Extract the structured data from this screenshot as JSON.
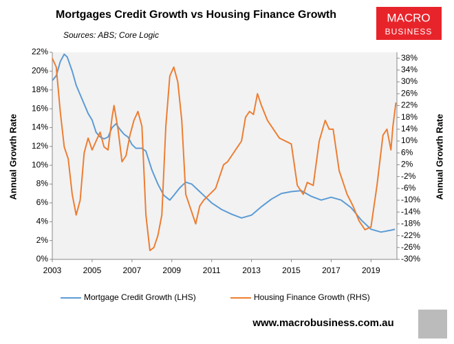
{
  "logo": [
    "MACRO",
    "BUSINESS"
  ],
  "footer": "www.macrobusiness.com.au",
  "chart_data": {
    "type": "line",
    "title": "Mortgages Credit Growth vs Housing Finance Growth",
    "subtitle": "Sources: ABS; Core Logic",
    "y_label": "Annual Growth Rate",
    "y2_label": "Annual Growth Rate",
    "xlim": [
      2003,
      2020.3
    ],
    "xticks": [
      2003,
      2005,
      2007,
      2009,
      2011,
      2013,
      2015,
      2017,
      2019
    ],
    "ylim": [
      0,
      22
    ],
    "yticks": [
      {
        "value": 0,
        "label": "0%"
      },
      {
        "value": 2,
        "label": "2%"
      },
      {
        "value": 4,
        "label": "4%"
      },
      {
        "value": 6,
        "label": "6%"
      },
      {
        "value": 8,
        "label": "8%"
      },
      {
        "value": 10,
        "label": "10%"
      },
      {
        "value": 12,
        "label": "12%"
      },
      {
        "value": 14,
        "label": "14%"
      },
      {
        "value": 16,
        "label": "16%"
      },
      {
        "value": 18,
        "label": "18%"
      },
      {
        "value": 20,
        "label": "20%"
      },
      {
        "value": 22,
        "label": "22%"
      }
    ],
    "y2lim": [
      -30,
      40
    ],
    "y2ticks": [
      {
        "value": -30,
        "label": "-30%"
      },
      {
        "value": -26,
        "label": "-26%"
      },
      {
        "value": -22,
        "label": "-22%"
      },
      {
        "value": -18,
        "label": "-18%"
      },
      {
        "value": -14,
        "label": "-14%"
      },
      {
        "value": -10,
        "label": "-10%"
      },
      {
        "value": -6,
        "label": "-6%"
      },
      {
        "value": -2,
        "label": "-2%"
      },
      {
        "value": 2,
        "label": "2%"
      },
      {
        "value": 6,
        "label": "6%"
      },
      {
        "value": 10,
        "label": "10%"
      },
      {
        "value": 14,
        "label": "14%"
      },
      {
        "value": 18,
        "label": "18%"
      },
      {
        "value": 22,
        "label": "22%"
      },
      {
        "value": 26,
        "label": "26%"
      },
      {
        "value": 30,
        "label": "30%"
      },
      {
        "value": 34,
        "label": "34%"
      },
      {
        "value": 38,
        "label": "38%"
      }
    ],
    "grid": false,
    "series": [
      {
        "name": "Mortgage Credit Growth (LHS)",
        "color": "#5b9bd5",
        "axis": "y",
        "x": [
          2003.0,
          2003.2,
          2003.4,
          2003.6,
          2003.75,
          2004.0,
          2004.2,
          2004.5,
          2004.8,
          2005.0,
          2005.2,
          2005.4,
          2005.6,
          2005.8,
          2006.0,
          2006.2,
          2006.4,
          2006.6,
          2006.8,
          2007.0,
          2007.2,
          2007.5,
          2007.7,
          2008.0,
          2008.3,
          2008.6,
          2008.9,
          2009.1,
          2009.4,
          2009.7,
          2010.0,
          2010.3,
          2010.6,
          2011.0,
          2011.5,
          2012.0,
          2012.5,
          2013.0,
          2013.5,
          2014.0,
          2014.5,
          2015.0,
          2015.5,
          2016.0,
          2016.5,
          2017.0,
          2017.5,
          2018.0,
          2018.5,
          2019.0,
          2019.5,
          2020.0,
          2020.2
        ],
        "values": [
          19,
          19.5,
          21,
          21.8,
          21.5,
          20,
          18.5,
          17,
          15.5,
          14.8,
          13.5,
          13,
          12.8,
          13,
          14,
          14.4,
          13.8,
          13.3,
          13,
          12.2,
          11.8,
          11.8,
          11.5,
          9.5,
          8,
          6.8,
          6.3,
          6.8,
          7.6,
          8.2,
          8,
          7.4,
          6.8,
          6,
          5.3,
          4.8,
          4.4,
          4.7,
          5.6,
          6.4,
          7,
          7.2,
          7.3,
          6.7,
          6.3,
          6.6,
          6.3,
          5.5,
          4.2,
          3.2,
          2.9,
          3.1,
          3.2
        ]
      },
      {
        "name": "Housing Finance Growth (RHS)",
        "color": "#ed7d31",
        "axis": "y2",
        "x": [
          2003.0,
          2003.2,
          2003.4,
          2003.6,
          2003.8,
          2004.0,
          2004.2,
          2004.4,
          2004.6,
          2004.8,
          2005.0,
          2005.2,
          2005.4,
          2005.6,
          2005.8,
          2006.0,
          2006.1,
          2006.3,
          2006.5,
          2006.7,
          2006.9,
          2007.1,
          2007.3,
          2007.5,
          2007.7,
          2007.9,
          2008.1,
          2008.3,
          2008.5,
          2008.7,
          2008.9,
          2009.1,
          2009.3,
          2009.5,
          2009.7,
          2010.0,
          2010.2,
          2010.4,
          2010.6,
          2010.9,
          2011.2,
          2011.4,
          2011.6,
          2011.8,
          2012.0,
          2012.3,
          2012.5,
          2012.7,
          2012.9,
          2013.1,
          2013.3,
          2013.5,
          2013.8,
          2014.1,
          2014.4,
          2014.7,
          2015.0,
          2015.3,
          2015.6,
          2015.8,
          2016.1,
          2016.4,
          2016.7,
          2016.9,
          2017.1,
          2017.4,
          2017.8,
          2018.1,
          2018.4,
          2018.7,
          2019.0,
          2019.3,
          2019.6,
          2019.8,
          2020.0,
          2020.1,
          2020.25
        ],
        "values": [
          38,
          35,
          20,
          8,
          4,
          -8,
          -15,
          -10,
          6,
          11,
          7,
          10,
          13,
          8,
          7,
          18,
          22,
          14,
          3,
          5,
          12,
          17,
          20,
          15,
          -15,
          -27,
          -26,
          -22,
          -15,
          15,
          32,
          35,
          30,
          17,
          -8,
          -14,
          -18,
          -12,
          -10,
          -8,
          -6,
          -2,
          2,
          3,
          5,
          8,
          10,
          18,
          20,
          19,
          26,
          22,
          17,
          14,
          11,
          10,
          9,
          -5,
          -8,
          -4,
          -5,
          10,
          17,
          14,
          14,
          0,
          -8,
          -12,
          -17,
          -20,
          -19,
          -5,
          12,
          14,
          7,
          15,
          23
        ]
      }
    ]
  }
}
